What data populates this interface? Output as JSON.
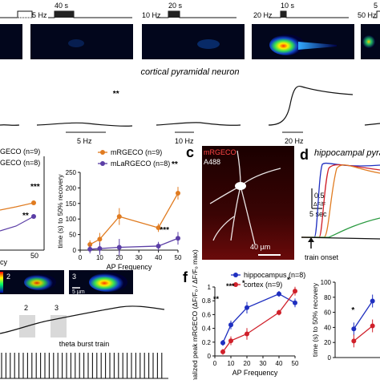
{
  "top_row": {
    "caption": "cortical pyramidal neuron",
    "stim_labels": [
      "5 Hz",
      "10 Hz",
      "20 Hz",
      "50 Hz"
    ],
    "duration_labels": [
      "40 s",
      "20 s",
      "10 s",
      "5"
    ],
    "trace_labels": [
      "5 Hz",
      "10 Hz",
      "20 Hz"
    ]
  },
  "panel_left_partial": {
    "legend": [
      "GECO (n=9)",
      "GECO (n=8)"
    ],
    "xlabel": "cy",
    "sig": [
      "***",
      "**"
    ],
    "tick_50": "50"
  },
  "panel_b_chart": {
    "chart_data": {
      "type": "line",
      "x": [
        5,
        10,
        20,
        40,
        50
      ],
      "series": [
        {
          "name": "mRGECO (n=9)",
          "color": "#e07b20",
          "values": [
            18,
            35,
            108,
            72,
            183
          ]
        },
        {
          "name": "mLaRGECO (n=8)",
          "color": "#5b3ea6",
          "values": [
            3,
            5,
            9,
            13,
            38
          ]
        }
      ],
      "xlabel": "AP Frequency",
      "ylabel": "time (s) to 50% recovery",
      "ylim": [
        0,
        250
      ],
      "yticks": [
        0,
        50,
        100,
        150,
        200,
        250
      ],
      "xticks": [
        0,
        10,
        20,
        30,
        40,
        50
      ],
      "sig": [
        "**",
        "**",
        "***"
      ]
    }
  },
  "panel_c": {
    "letter": "c",
    "label_red": "mRGECO",
    "label_white": "A488",
    "scale": "40 µm"
  },
  "panel_d": {
    "letter": "d",
    "title": "hippocampal pyram",
    "scale_v": "0.5",
    "scale_v_unit": "ΔF/F",
    "scale_t": "5 sec",
    "arrow_label": "train onset"
  },
  "panel_bottom_left": {
    "inset_numbers": [
      "2",
      "3"
    ],
    "scale": "5 µm",
    "trace_caption": "theta burst train"
  },
  "panel_f": {
    "letter": "f",
    "chart_data": {
      "type": "line",
      "x": [
        5,
        10,
        20,
        40,
        50
      ],
      "series": [
        {
          "name": "hippocampus (n=8)",
          "color": "#1f2fc0",
          "values": [
            0.19,
            0.45,
            0.7,
            0.9,
            0.77
          ]
        },
        {
          "name": "cortex (n=9)",
          "color": "#d0202a",
          "values": [
            0.06,
            0.22,
            0.32,
            0.63,
            0.94
          ]
        }
      ],
      "xlabel": "AP Frequency",
      "ylabel": "normalized peak mRGECO (ΔF/Fₒ / ΔF/Fₒ max)",
      "ylim": [
        0,
        1.0
      ],
      "yticks": [
        0,
        0.2,
        0.4,
        0.6,
        0.8,
        1.0
      ],
      "xticks": [
        0,
        10,
        20,
        30,
        40,
        50
      ],
      "sig": [
        "**",
        "***",
        "*",
        "*"
      ]
    }
  },
  "panel_g_partial": {
    "ylabel": "time (s) to 50% recovery",
    "yticks": [
      "0",
      "20",
      "40",
      "60",
      "80",
      "100"
    ],
    "sig": [
      "*"
    ],
    "chart_data": {
      "type": "line",
      "x": [
        5,
        10
      ],
      "series": [
        {
          "name": "hippocampus",
          "color": "#1f2fc0",
          "values": [
            38,
            75
          ]
        },
        {
          "name": "cortex",
          "color": "#d0202a",
          "values": [
            22,
            42
          ]
        }
      ],
      "ylim": [
        0,
        100
      ]
    }
  }
}
